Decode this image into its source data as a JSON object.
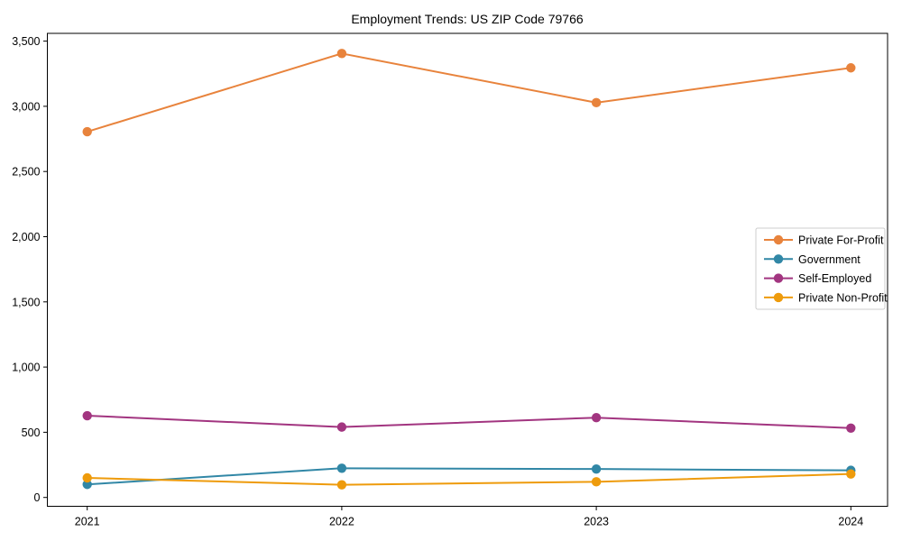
{
  "chart_data": {
    "type": "line",
    "title": "Employment Trends: US ZIP Code 79766",
    "xlabel": "",
    "ylabel": "",
    "x": [
      "2021",
      "2022",
      "2023",
      "2024"
    ],
    "series": [
      {
        "name": "Private For-Profit",
        "color": "#E8833C",
        "values": [
          2805,
          3405,
          3028,
          3295
        ]
      },
      {
        "name": "Government",
        "color": "#3187A6",
        "values": [
          100,
          224,
          218,
          208
        ]
      },
      {
        "name": "Self-Employed",
        "color": "#A23580",
        "values": [
          627,
          540,
          612,
          532
        ]
      },
      {
        "name": "Private Non-Profit",
        "color": "#EE9B0C",
        "values": [
          150,
          97,
          120,
          180
        ]
      }
    ],
    "ylim": [
      0,
      3500
    ],
    "yticks": [
      0,
      500,
      1000,
      1500,
      2000,
      2500,
      3000,
      3500
    ],
    "ytick_labels": [
      "0",
      "500",
      "1,000",
      "1,500",
      "2,000",
      "2,500",
      "3,000",
      "3,500"
    ],
    "grid": false,
    "marker": "circle",
    "legend_position": "center right",
    "axis_color": "#000000",
    "legend_border_color": "#cccccc",
    "legend_background": "#ffffff"
  }
}
